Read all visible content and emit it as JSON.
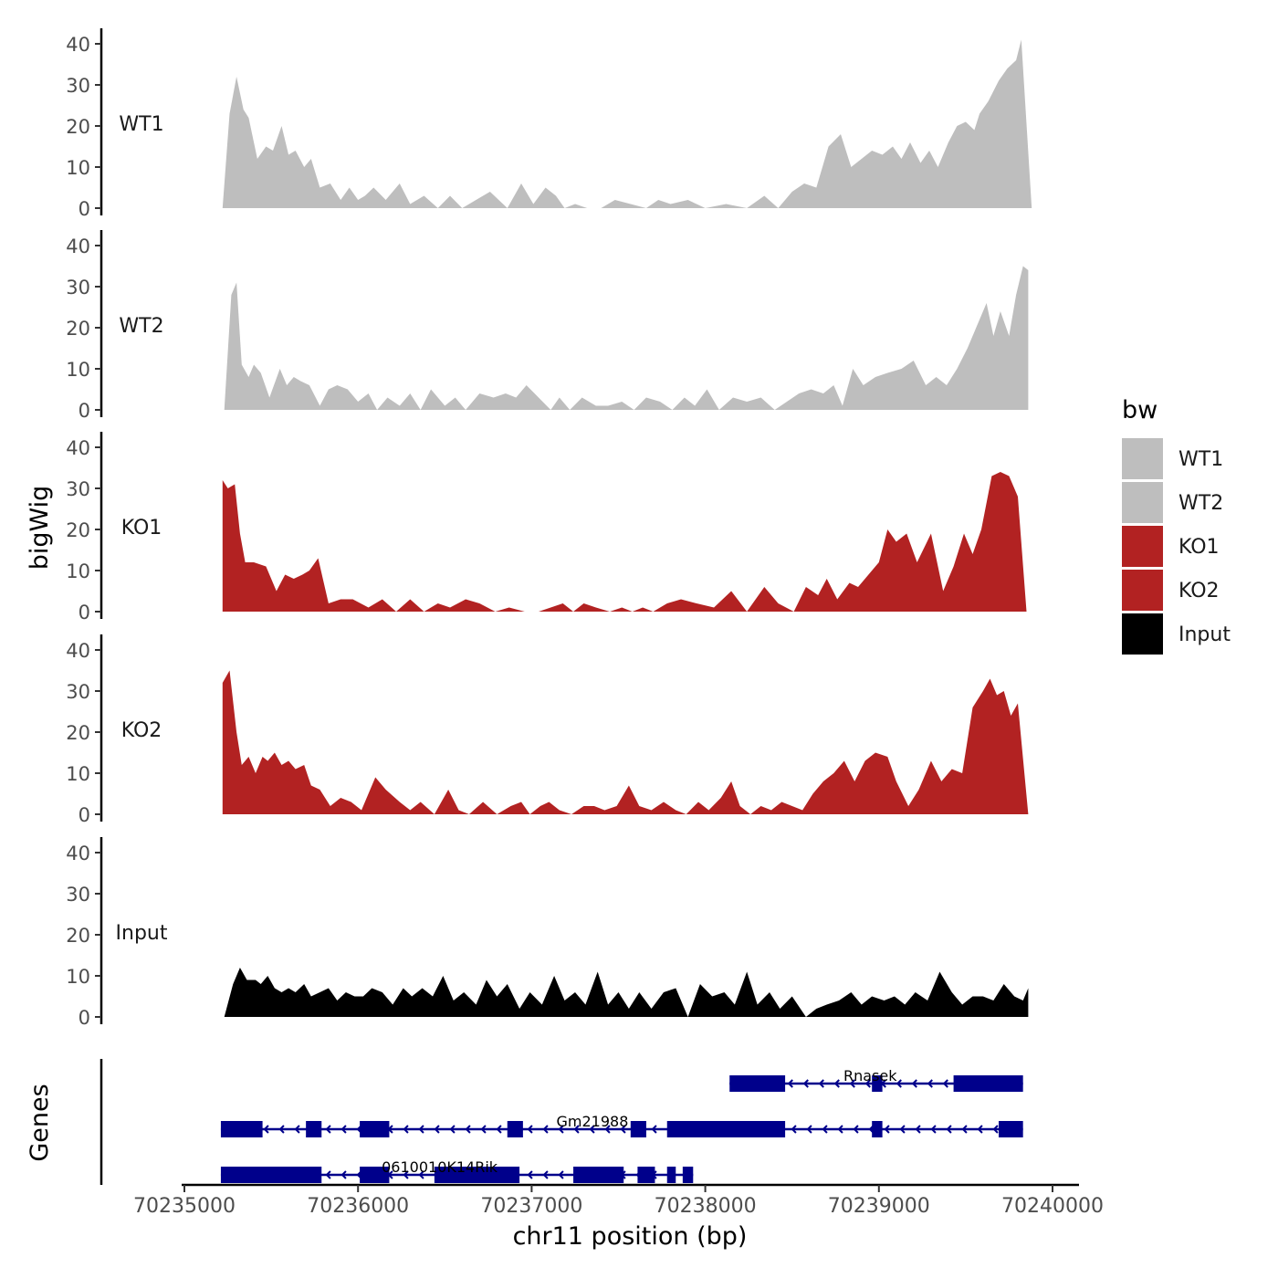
{
  "chart_data": {
    "type": "area",
    "ylabel": "bigWig",
    "xlabel": "chr11 position (bp)",
    "xlim": [
      70235000,
      70240000
    ],
    "x_ticks": [
      70235000,
      70236000,
      70237000,
      70238000,
      70239000,
      70240000
    ],
    "x_tick_labels": [
      "70235000",
      "70236000",
      "70237000",
      "70238000",
      "70239000",
      "70240000"
    ],
    "ylim": [
      0,
      45
    ],
    "y_ticks": [
      0,
      10,
      20,
      30,
      40
    ],
    "y_tick_labels": [
      "0",
      "10",
      "20",
      "30",
      "40"
    ],
    "genes_label": "Genes",
    "legend": {
      "title": "bw",
      "items": [
        {
          "label": "WT1",
          "color": "#bebebe"
        },
        {
          "label": "WT2",
          "color": "#bebebe"
        },
        {
          "label": "KO1",
          "color": "#b22222"
        },
        {
          "label": "KO2",
          "color": "#b22222"
        },
        {
          "label": "Input",
          "color": "#000000"
        }
      ]
    },
    "series": [
      {
        "name": "WT1",
        "color": "#bebebe",
        "x": [
          70235220,
          70235260,
          70235300,
          70235340,
          70235370,
          70235420,
          70235470,
          70235510,
          70235560,
          70235600,
          70235640,
          70235690,
          70235730,
          70235780,
          70235840,
          70235900,
          70235950,
          70236000,
          70236040,
          70236090,
          70236160,
          70236240,
          70236300,
          70236380,
          70236460,
          70236530,
          70236600,
          70236680,
          70236760,
          70236860,
          70236940,
          70237010,
          70237080,
          70237140,
          70237190,
          70237250,
          70237320,
          70237400,
          70237480,
          70237570,
          70237660,
          70237730,
          70237800,
          70237900,
          70238000,
          70238120,
          70238240,
          70238340,
          70238420,
          70238500,
          70238570,
          70238640,
          70238710,
          70238780,
          70238840,
          70238900,
          70238960,
          70239020,
          70239080,
          70239130,
          70239180,
          70239240,
          70239290,
          70239340,
          70239400,
          70239450,
          70239500,
          70239550,
          70239580,
          70239630,
          70239690,
          70239740,
          70239790,
          70239820,
          70239880
        ],
        "values": [
          0,
          23,
          32,
          24,
          22,
          12,
          15,
          14,
          20,
          13,
          14,
          10,
          12,
          5,
          6,
          2,
          5,
          2,
          3,
          5,
          2,
          6,
          1,
          3,
          0,
          3,
          0,
          2,
          4,
          0,
          6,
          1,
          5,
          3,
          0,
          1,
          0,
          0,
          2,
          1,
          0,
          2,
          1,
          2,
          0,
          1,
          0,
          3,
          0,
          4,
          6,
          5,
          15,
          18,
          10,
          12,
          14,
          13,
          15,
          12,
          16,
          11,
          14,
          10,
          16,
          20,
          21,
          19,
          23,
          26,
          31,
          34,
          36,
          41,
          0
        ]
      },
      {
        "name": "WT2",
        "color": "#bebebe",
        "x": [
          70235230,
          70235270,
          70235300,
          70235330,
          70235370,
          70235400,
          70235440,
          70235490,
          70235550,
          70235590,
          70235630,
          70235670,
          70235720,
          70235780,
          70235830,
          70235880,
          70235940,
          70236000,
          70236060,
          70236110,
          70236170,
          70236240,
          70236300,
          70236360,
          70236420,
          70236500,
          70236560,
          70236620,
          70236700,
          70236780,
          70236850,
          70236910,
          70236970,
          70237040,
          70237110,
          70237160,
          70237220,
          70237290,
          70237370,
          70237440,
          70237520,
          70237590,
          70237660,
          70237740,
          70237810,
          70237880,
          70237940,
          70238010,
          70238080,
          70238160,
          70238240,
          70238320,
          70238400,
          70238470,
          70238540,
          70238610,
          70238680,
          70238740,
          70238790,
          70238850,
          70238910,
          70238980,
          70239050,
          70239130,
          70239200,
          70239270,
          70239330,
          70239390,
          70239450,
          70239510,
          70239560,
          70239620,
          70239660,
          70239700,
          70239750,
          70239790,
          70239830,
          70239860
        ],
        "values": [
          0,
          28,
          31,
          11,
          8,
          11,
          9,
          3,
          10,
          6,
          8,
          7,
          6,
          1,
          5,
          6,
          5,
          2,
          4,
          0,
          3,
          1,
          4,
          0,
          5,
          1,
          3,
          0,
          4,
          3,
          4,
          3,
          6,
          3,
          0,
          3,
          0,
          3,
          1,
          1,
          2,
          0,
          3,
          2,
          0,
          3,
          1,
          5,
          0,
          3,
          2,
          3,
          0,
          2,
          4,
          5,
          4,
          6,
          1,
          10,
          6,
          8,
          9,
          10,
          12,
          6,
          8,
          6,
          10,
          15,
          20,
          26,
          18,
          24,
          18,
          28,
          35,
          34
        ]
      },
      {
        "name": "KO1",
        "color": "#b22222",
        "x": [
          70235220,
          70235250,
          70235290,
          70235320,
          70235350,
          70235400,
          70235470,
          70235530,
          70235580,
          70235630,
          70235680,
          70235720,
          70235770,
          70235830,
          70235900,
          70235970,
          70236060,
          70236140,
          70236220,
          70236300,
          70236380,
          70236460,
          70236530,
          70236620,
          70236700,
          70236790,
          70236870,
          70236960,
          70237040,
          70237110,
          70237180,
          70237240,
          70237300,
          70237370,
          70237450,
          70237520,
          70237580,
          70237640,
          70237700,
          70237780,
          70237860,
          70237950,
          70238050,
          70238150,
          70238240,
          70238340,
          70238420,
          70238510,
          70238580,
          70238650,
          70238700,
          70238760,
          70238830,
          70238880,
          70238940,
          70239000,
          70239050,
          70239100,
          70239160,
          70239220,
          70239300,
          70239370,
          70239430,
          70239490,
          70239540,
          70239590,
          70239650,
          70239700,
          70239750,
          70239800,
          70239850
        ],
        "values": [
          32,
          30,
          31,
          19,
          12,
          12,
          11,
          5,
          9,
          8,
          9,
          10,
          13,
          2,
          3,
          3,
          1,
          3,
          0,
          3,
          0,
          2,
          1,
          3,
          2,
          0,
          1,
          0,
          0,
          1,
          2,
          0,
          2,
          1,
          0,
          1,
          0,
          1,
          0,
          2,
          3,
          2,
          1,
          5,
          0,
          6,
          2,
          0,
          6,
          4,
          8,
          3,
          7,
          6,
          9,
          12,
          20,
          17,
          19,
          12,
          19,
          5,
          11,
          19,
          14,
          20,
          33,
          34,
          33,
          28,
          0
        ]
      },
      {
        "name": "KO2",
        "color": "#b22222",
        "x": [
          70235220,
          70235260,
          70235300,
          70235330,
          70235370,
          70235410,
          70235450,
          70235480,
          70235520,
          70235560,
          70235600,
          70235640,
          70235690,
          70235730,
          70235780,
          70235840,
          70235900,
          70235960,
          70236020,
          70236100,
          70236160,
          70236240,
          70236300,
          70236360,
          70236440,
          70236520,
          70236580,
          70236640,
          70236720,
          70236800,
          70236880,
          70236940,
          70236990,
          70237050,
          70237100,
          70237160,
          70237230,
          70237300,
          70237360,
          70237420,
          70237490,
          70237560,
          70237620,
          70237690,
          70237760,
          70237830,
          70237890,
          70237960,
          70238020,
          70238090,
          70238150,
          70238200,
          70238260,
          70238320,
          70238380,
          70238440,
          70238500,
          70238560,
          70238620,
          70238680,
          70238740,
          70238800,
          70238860,
          70238920,
          70238980,
          70239050,
          70239100,
          70239170,
          70239230,
          70239300,
          70239360,
          70239420,
          70239480,
          70239540,
          70239600,
          70239640,
          70239680,
          70239720,
          70239760,
          70239800,
          70239860
        ],
        "values": [
          32,
          35,
          20,
          12,
          14,
          10,
          14,
          13,
          15,
          12,
          13,
          11,
          12,
          7,
          6,
          2,
          4,
          3,
          1,
          9,
          6,
          3,
          1,
          3,
          0,
          6,
          1,
          0,
          3,
          0,
          2,
          3,
          0,
          2,
          3,
          1,
          0,
          2,
          2,
          1,
          2,
          7,
          2,
          1,
          3,
          1,
          0,
          3,
          1,
          4,
          8,
          2,
          0,
          2,
          1,
          3,
          2,
          1,
          5,
          8,
          10,
          13,
          8,
          13,
          15,
          14,
          8,
          2,
          6,
          13,
          8,
          11,
          10,
          26,
          30,
          33,
          29,
          30,
          24,
          27,
          0
        ]
      },
      {
        "name": "Input",
        "color": "#000000",
        "x": [
          70235230,
          70235280,
          70235320,
          70235360,
          70235410,
          70235440,
          70235480,
          70235520,
          70235560,
          70235600,
          70235640,
          70235690,
          70235730,
          70235780,
          70235830,
          70235880,
          70235930,
          70235980,
          70236030,
          70236080,
          70236140,
          70236200,
          70236260,
          70236310,
          70236370,
          70236430,
          70236490,
          70236550,
          70236610,
          70236680,
          70236740,
          70236800,
          70236860,
          70236930,
          70236990,
          70237060,
          70237130,
          70237190,
          70237250,
          70237310,
          70237380,
          70237440,
          70237500,
          70237560,
          70237620,
          70237690,
          70237760,
          70237830,
          70237900,
          70237970,
          70238040,
          70238110,
          70238170,
          70238240,
          70238300,
          70238370,
          70238430,
          70238500,
          70238580,
          70238640,
          70238700,
          70238770,
          70238840,
          70238900,
          70238960,
          70239030,
          70239090,
          70239150,
          70239210,
          70239280,
          70239350,
          70239420,
          70239480,
          70239540,
          70239600,
          70239660,
          70239720,
          70239780,
          70239830,
          70239860
        ],
        "values": [
          0,
          8,
          12,
          9,
          9,
          8,
          10,
          7,
          6,
          7,
          6,
          8,
          5,
          6,
          7,
          4,
          6,
          5,
          5,
          7,
          6,
          3,
          7,
          5,
          7,
          5,
          10,
          4,
          6,
          3,
          9,
          5,
          8,
          2,
          6,
          3,
          10,
          4,
          6,
          3,
          11,
          3,
          6,
          2,
          6,
          2,
          6,
          7,
          0,
          8,
          5,
          6,
          3,
          11,
          3,
          6,
          2,
          5,
          0,
          2,
          3,
          4,
          6,
          3,
          5,
          4,
          5,
          3,
          6,
          4,
          11,
          6,
          3,
          5,
          5,
          4,
          8,
          5,
          4,
          7
        ]
      }
    ],
    "genes": [
      {
        "name": "Rnasek",
        "row": 0,
        "strand": "-",
        "line": [
          70238140,
          70239830
        ],
        "exons": [
          [
            70238140,
            70238460
          ],
          [
            70238960,
            70239020
          ],
          [
            70239430,
            70239830
          ]
        ],
        "label_x": 70238950
      },
      {
        "name": "Gm21988",
        "row": 1,
        "strand": "-",
        "line": [
          70235210,
          70239830
        ],
        "exons": [
          [
            70235210,
            70235450
          ],
          [
            70235700,
            70235790
          ],
          [
            70236010,
            70236180
          ],
          [
            70236860,
            70236950
          ],
          [
            70237570,
            70237660
          ],
          [
            70237780,
            70238460
          ],
          [
            70238960,
            70239020
          ],
          [
            70239690,
            70239830
          ]
        ],
        "label_x": 70237350
      },
      {
        "name": "0610010K14Rik",
        "row": 2,
        "strand": "-",
        "line": [
          70235210,
          70237930
        ],
        "exons": [
          [
            70235210,
            70235790
          ],
          [
            70236010,
            70236180
          ],
          [
            70236440,
            70236930
          ],
          [
            70237240,
            70237530
          ],
          [
            70237610,
            70237710
          ],
          [
            70237780,
            70237830
          ],
          [
            70237870,
            70237930
          ]
        ],
        "label_x": 70236470
      }
    ]
  }
}
